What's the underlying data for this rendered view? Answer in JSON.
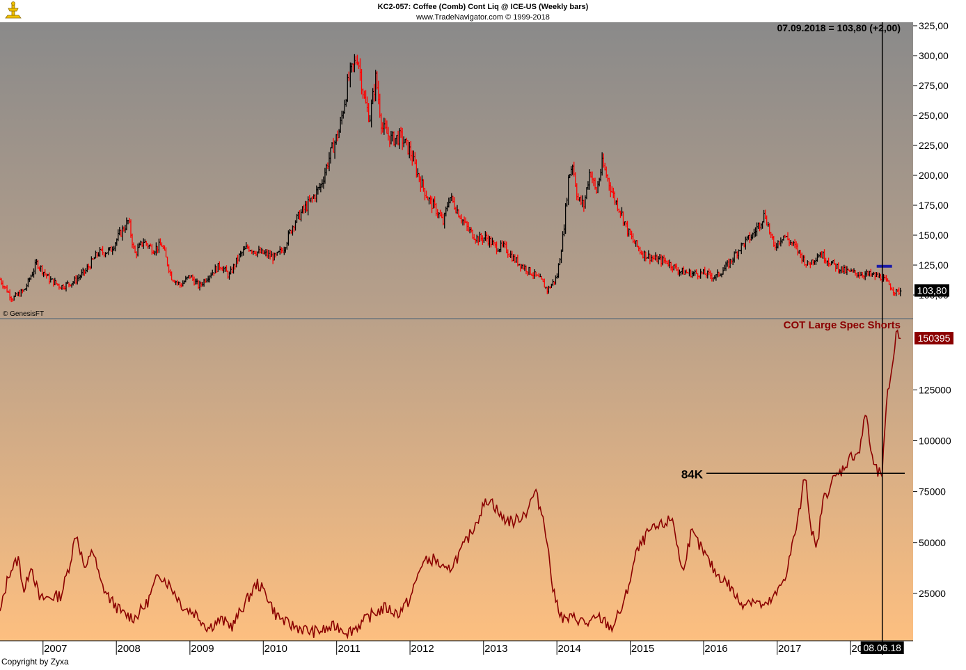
{
  "header": {
    "title": "KC2-057:  Coffee (Comb) Cont Liq @ ICE-US  (Weekly bars)",
    "subtitle": "www.TradeNavigator.com © 1999-2018"
  },
  "watermark_top": "© GenesisFT",
  "copyright": "Copyright by Zyxa",
  "logo": {
    "name": "trade-navigator-logo-icon",
    "color": "#f2c200"
  },
  "colors": {
    "up_bar": "#000000",
    "down_bar": "#ff0000",
    "cot_line": "#8b0000",
    "bg_top_price": "#8a8a8a",
    "bg_bottom_cot": "#fdbf80",
    "axis_bg": "#ffffff",
    "marker_blue": "#1a1aa8"
  },
  "cursor": {
    "readout": "07.09.2018 = 103,80 (+2,00)",
    "date_label": "08.06.18"
  },
  "chart_data": [
    {
      "type": "candlestick",
      "name": "price-panel",
      "title": "KC2-057:  Coffee (Comb) Cont Liq @ ICE-US  (Weekly bars)",
      "ylim": [
        95,
        325
      ],
      "y_ticks": [
        "100,00",
        "125,00",
        "150,00",
        "175,00",
        "200,00",
        "225,00",
        "250,00",
        "275,00",
        "300,00",
        "325,00"
      ],
      "y_tick_values": [
        100,
        125,
        150,
        175,
        200,
        225,
        250,
        275,
        300,
        325
      ],
      "last_value_label": "103,80",
      "last_value": 103.8,
      "marker_level": 124,
      "series": [
        {
          "name": "weekly-close",
          "points": [
            [
              "2006-06-01",
              113
            ],
            [
              "2006-08-01",
              97
            ],
            [
              "2006-10-01",
              104
            ],
            [
              "2006-12-01",
              127
            ],
            [
              "2007-02-01",
              113
            ],
            [
              "2007-04-01",
              107
            ],
            [
              "2007-06-01",
              111
            ],
            [
              "2007-08-01",
              120
            ],
            [
              "2007-10-01",
              135
            ],
            [
              "2007-12-01",
              137
            ],
            [
              "2008-01-15",
              150
            ],
            [
              "2008-03-01",
              162
            ],
            [
              "2008-04-01",
              134
            ],
            [
              "2008-05-15",
              145
            ],
            [
              "2008-07-01",
              138
            ],
            [
              "2008-08-15",
              142
            ],
            [
              "2008-10-01",
              115
            ],
            [
              "2008-11-15",
              108
            ],
            [
              "2009-01-01",
              116
            ],
            [
              "2009-02-15",
              107
            ],
            [
              "2009-04-01",
              116
            ],
            [
              "2009-06-01",
              125
            ],
            [
              "2009-07-15",
              116
            ],
            [
              "2009-09-01",
              132
            ],
            [
              "2009-10-15",
              140
            ],
            [
              "2009-12-01",
              136
            ],
            [
              "2010-01-15",
              134
            ],
            [
              "2010-03-01",
              131
            ],
            [
              "2010-04-15",
              140
            ],
            [
              "2010-06-01",
              160
            ],
            [
              "2010-07-15",
              170
            ],
            [
              "2010-09-01",
              180
            ],
            [
              "2010-10-15",
              192
            ],
            [
              "2010-12-01",
              218
            ],
            [
              "2011-01-15",
              238
            ],
            [
              "2011-03-01",
              280
            ],
            [
              "2011-04-15",
              300
            ],
            [
              "2011-05-20",
              262
            ],
            [
              "2011-06-15",
              248
            ],
            [
              "2011-07-15",
              282
            ],
            [
              "2011-08-15",
              240
            ],
            [
              "2011-10-01",
              230
            ],
            [
              "2011-11-15",
              232
            ],
            [
              "2012-01-01",
              220
            ],
            [
              "2012-02-15",
              198
            ],
            [
              "2012-04-01",
              180
            ],
            [
              "2012-05-15",
              170
            ],
            [
              "2012-06-15",
              160
            ],
            [
              "2012-07-15",
              183
            ],
            [
              "2012-09-01",
              168
            ],
            [
              "2012-10-15",
              155
            ],
            [
              "2012-12-01",
              147
            ],
            [
              "2013-01-15",
              148
            ],
            [
              "2013-03-01",
              140
            ],
            [
              "2013-04-15",
              140
            ],
            [
              "2013-06-01",
              130
            ],
            [
              "2013-07-15",
              124
            ],
            [
              "2013-09-01",
              118
            ],
            [
              "2013-10-15",
              112
            ],
            [
              "2013-11-15",
              104
            ],
            [
              "2014-01-01",
              115
            ],
            [
              "2014-02-01",
              150
            ],
            [
              "2014-03-01",
              200
            ],
            [
              "2014-03-20",
              210
            ],
            [
              "2014-04-15",
              180
            ],
            [
              "2014-05-15",
              175
            ],
            [
              "2014-06-15",
              205
            ],
            [
              "2014-07-15",
              185
            ],
            [
              "2014-08-15",
              210
            ],
            [
              "2014-09-15",
              195
            ],
            [
              "2014-10-15",
              180
            ],
            [
              "2014-11-15",
              170
            ],
            [
              "2014-12-15",
              155
            ],
            [
              "2015-01-15",
              145
            ],
            [
              "2015-03-01",
              135
            ],
            [
              "2015-05-01",
              130
            ],
            [
              "2015-07-01",
              128
            ],
            [
              "2015-09-01",
              120
            ],
            [
              "2015-11-01",
              118
            ],
            [
              "2016-01-01",
              118
            ],
            [
              "2016-03-01",
              115
            ],
            [
              "2016-05-01",
              125
            ],
            [
              "2016-07-01",
              140
            ],
            [
              "2016-09-01",
              150
            ],
            [
              "2016-11-01",
              168
            ],
            [
              "2016-12-15",
              140
            ],
            [
              "2017-02-01",
              150
            ],
            [
              "2017-04-01",
              140
            ],
            [
              "2017-06-01",
              125
            ],
            [
              "2017-08-01",
              135
            ],
            [
              "2017-10-01",
              126
            ],
            [
              "2017-12-01",
              120
            ],
            [
              "2018-02-01",
              118
            ],
            [
              "2018-04-01",
              117
            ],
            [
              "2018-06-01",
              115
            ],
            [
              "2018-07-15",
              108
            ],
            [
              "2018-08-15",
              102
            ],
            [
              "2018-09-07",
              103.8
            ]
          ]
        }
      ]
    },
    {
      "type": "line",
      "name": "cot-panel",
      "title": "COT Large Spec Shorts",
      "ylim": [
        0,
        160000
      ],
      "y_ticks": [
        "25000",
        "50000",
        "75000",
        "100000",
        "125000"
      ],
      "y_tick_values": [
        25000,
        50000,
        75000,
        100000,
        125000
      ],
      "last_value_label": "150395",
      "last_value": 150395,
      "annotation": {
        "label": "84K",
        "value": 84000
      },
      "x_ticks": [
        "2007",
        "2008",
        "2009",
        "2010",
        "2011",
        "2012",
        "2013",
        "2014",
        "2015",
        "2016",
        "2017",
        "2018"
      ],
      "x_tick_dates": [
        "2007-01-01",
        "2008-01-01",
        "2009-01-01",
        "2010-01-01",
        "2011-01-01",
        "2012-01-01",
        "2013-01-01",
        "2014-01-01",
        "2015-01-01",
        "2016-01-01",
        "2017-01-01",
        "2018-01-01"
      ],
      "series": [
        {
          "name": "COT Large Spec Shorts",
          "points": [
            [
              "2006-06-01",
              15000
            ],
            [
              "2006-07-15",
              35000
            ],
            [
              "2006-09-01",
              42000
            ],
            [
              "2006-10-01",
              25000
            ],
            [
              "2006-11-01",
              40000
            ],
            [
              "2006-12-15",
              22000
            ],
            [
              "2007-02-01",
              23000
            ],
            [
              "2007-04-01",
              24000
            ],
            [
              "2007-05-15",
              40000
            ],
            [
              "2007-06-15",
              55000
            ],
            [
              "2007-08-01",
              35000
            ],
            [
              "2007-09-01",
              48000
            ],
            [
              "2007-10-15",
              30000
            ],
            [
              "2007-12-01",
              22000
            ],
            [
              "2008-02-01",
              15000
            ],
            [
              "2008-04-01",
              13000
            ],
            [
              "2008-06-01",
              20000
            ],
            [
              "2008-08-01",
              35000
            ],
            [
              "2008-10-01",
              28000
            ],
            [
              "2008-12-01",
              18000
            ],
            [
              "2009-02-01",
              15000
            ],
            [
              "2009-04-01",
              8000
            ],
            [
              "2009-06-01",
              12000
            ],
            [
              "2009-08-01",
              9000
            ],
            [
              "2009-10-01",
              20000
            ],
            [
              "2009-12-01",
              30000
            ],
            [
              "2010-01-15",
              25000
            ],
            [
              "2010-03-01",
              15000
            ],
            [
              "2010-05-01",
              10000
            ],
            [
              "2010-07-01",
              8000
            ],
            [
              "2010-09-01",
              6000
            ],
            [
              "2010-11-01",
              7000
            ],
            [
              "2011-01-01",
              9000
            ],
            [
              "2011-03-01",
              6000
            ],
            [
              "2011-05-01",
              10000
            ],
            [
              "2011-07-01",
              15000
            ],
            [
              "2011-09-01",
              18000
            ],
            [
              "2011-11-01",
              15000
            ],
            [
              "2012-01-01",
              22000
            ],
            [
              "2012-03-01",
              40000
            ],
            [
              "2012-05-01",
              42000
            ],
            [
              "2012-07-01",
              35000
            ],
            [
              "2012-09-01",
              44000
            ],
            [
              "2012-11-01",
              55000
            ],
            [
              "2013-01-01",
              68000
            ],
            [
              "2013-02-01",
              72000
            ],
            [
              "2013-04-01",
              62000
            ],
            [
              "2013-06-01",
              60000
            ],
            [
              "2013-08-01",
              65000
            ],
            [
              "2013-09-15",
              75000
            ],
            [
              "2013-11-01",
              60000
            ],
            [
              "2013-12-15",
              25000
            ],
            [
              "2014-02-01",
              12000
            ],
            [
              "2014-04-01",
              13000
            ],
            [
              "2014-06-01",
              10000
            ],
            [
              "2014-08-01",
              13000
            ],
            [
              "2014-10-01",
              8000
            ],
            [
              "2014-12-01",
              20000
            ],
            [
              "2015-02-01",
              45000
            ],
            [
              "2015-04-01",
              55000
            ],
            [
              "2015-06-01",
              58000
            ],
            [
              "2015-08-01",
              62000
            ],
            [
              "2015-09-15",
              35000
            ],
            [
              "2015-11-01",
              55000
            ],
            [
              "2016-01-01",
              45000
            ],
            [
              "2016-03-01",
              35000
            ],
            [
              "2016-05-01",
              30000
            ],
            [
              "2016-07-01",
              20000
            ],
            [
              "2016-09-01",
              22000
            ],
            [
              "2016-11-01",
              18000
            ],
            [
              "2017-01-01",
              25000
            ],
            [
              "2017-02-15",
              35000
            ],
            [
              "2017-04-01",
              55000
            ],
            [
              "2017-05-01",
              70000
            ],
            [
              "2017-05-20",
              85000
            ],
            [
              "2017-06-15",
              60000
            ],
            [
              "2017-07-15",
              45000
            ],
            [
              "2017-08-15",
              70000
            ],
            [
              "2017-10-01",
              80000
            ],
            [
              "2017-11-15",
              85000
            ],
            [
              "2018-01-01",
              92000
            ],
            [
              "2018-02-15",
              95000
            ],
            [
              "2018-03-20",
              115000
            ],
            [
              "2018-04-15",
              92000
            ],
            [
              "2018-05-15",
              84000
            ],
            [
              "2018-06-08",
              84000
            ],
            [
              "2018-07-01",
              120000
            ],
            [
              "2018-08-01",
              140000
            ],
            [
              "2018-08-20",
              155000
            ],
            [
              "2018-09-07",
              150395
            ]
          ]
        }
      ]
    }
  ]
}
